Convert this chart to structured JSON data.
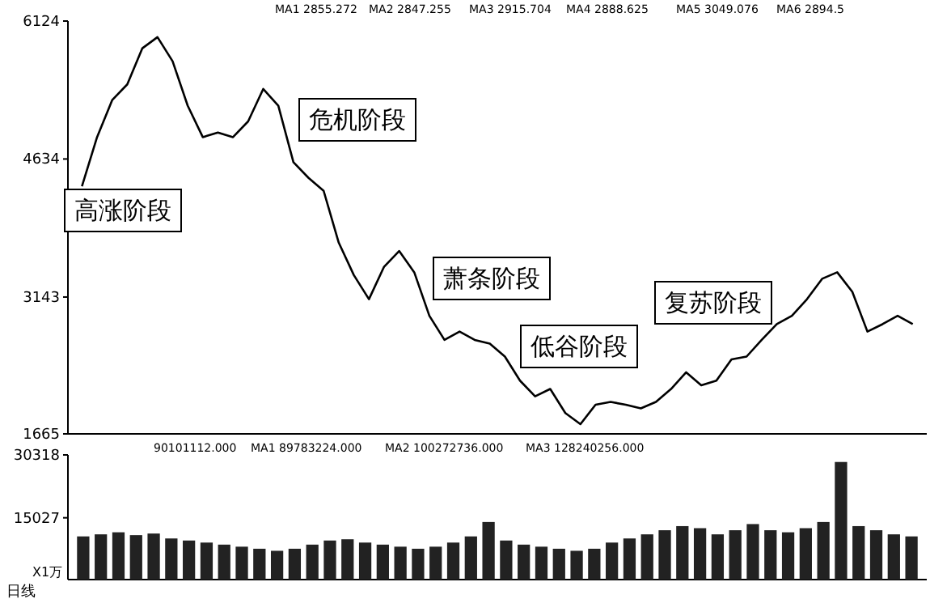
{
  "chart_data": [
    {
      "type": "line",
      "categories": [
        null,
        null,
        null,
        null,
        null,
        null,
        null,
        null,
        null,
        null,
        null,
        null,
        null,
        null,
        null,
        null,
        null,
        null,
        null,
        null,
        null,
        null,
        null,
        null,
        null,
        null,
        null,
        null,
        null,
        null,
        null,
        null,
        null,
        null,
        null,
        null,
        null,
        null,
        null,
        null,
        null,
        null,
        null,
        null,
        null,
        null,
        null,
        null,
        null,
        null,
        null,
        null,
        null,
        null,
        null,
        null
      ],
      "series": [
        {
          "color": "#000000",
          "values": [
            4340,
            4870,
            5270,
            5440,
            5830,
            5950,
            5690,
            5210,
            4870,
            4920,
            4870,
            5040,
            5390,
            5210,
            4600,
            4430,
            4290,
            3730,
            3380,
            3120,
            3470,
            3640,
            3410,
            2940,
            2680,
            2770,
            2680,
            2640,
            2500,
            2240,
            2070,
            2150,
            1890,
            1770,
            1980,
            2010,
            1980,
            1940,
            2010,
            2150,
            2330,
            2190,
            2240,
            2470,
            2500,
            2680,
            2850,
            2940,
            3120,
            3340,
            3410,
            3200,
            2770,
            2850,
            2940,
            2850
          ]
        }
      ],
      "ylim": [
        1665,
        6124
      ],
      "yticks": [
        1665,
        3143,
        4634,
        6124
      ],
      "annotations": [
        "高涨阶段",
        "危机阶段",
        "萧条阶段",
        "低谷阶段",
        "复苏阶段",
        "MA1 2855.272",
        "MA2 2847.255",
        "MA3 2915.704",
        "MA4 2888.625",
        "MA5 3049.076",
        "MA6 2894.5"
      ]
    },
    {
      "type": "bar",
      "categories": [
        null,
        null,
        null,
        null,
        null,
        null,
        null,
        null,
        null,
        null,
        null,
        null,
        null,
        null,
        null,
        null,
        null,
        null,
        null,
        null,
        null,
        null,
        null,
        null,
        null,
        null,
        null,
        null,
        null,
        null,
        null,
        null,
        null,
        null,
        null,
        null,
        null,
        null,
        null,
        null,
        null,
        null,
        null,
        null,
        null,
        null,
        null,
        null
      ],
      "values": [
        10500,
        11000,
        11500,
        10800,
        11200,
        10000,
        9500,
        9000,
        8500,
        8000,
        7500,
        7000,
        7500,
        8500,
        9500,
        9800,
        9000,
        8500,
        8000,
        7500,
        8000,
        9000,
        10500,
        14000,
        9500,
        8500,
        8000,
        7500,
        7000,
        7500,
        9000,
        10000,
        11000,
        12000,
        13000,
        12500,
        11000,
        12000,
        13500,
        12000,
        11500,
        12500,
        14000,
        28600,
        13000,
        12000,
        11000,
        10500
      ],
      "color": "#222222",
      "ylim": [
        0,
        30318
      ],
      "yticks": [
        15027,
        30318
      ],
      "annotations": [
        "90101112.000",
        "MA1 89783224.000",
        "MA2 100272736.000",
        "MA3 128240256.000",
        "X1万",
        "日线"
      ]
    }
  ]
}
